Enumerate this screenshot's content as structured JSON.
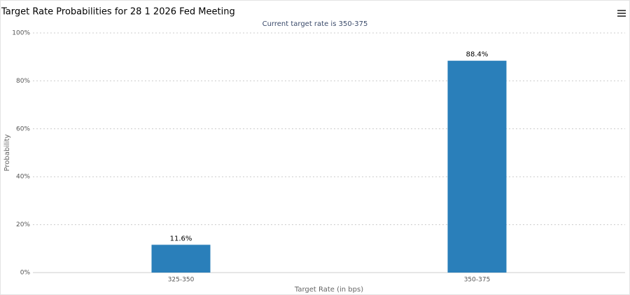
{
  "chart_data": {
    "type": "bar",
    "title": "Target Rate Probabilities for 28 1 2026 Fed Meeting",
    "subtitle": "Current target rate is 350-375",
    "y_label": "Probability",
    "x_label": "Target Rate (in bps)",
    "categories": [
      "325-350",
      "350-375"
    ],
    "values": [
      11.6,
      88.4
    ],
    "value_labels": [
      "11.6%",
      "88.4%"
    ],
    "color": "#2a7fba",
    "ylim": [
      0,
      100
    ],
    "yticks": [
      {
        "value": 0,
        "label": "0%"
      },
      {
        "value": 20,
        "label": "20%"
      },
      {
        "value": 40,
        "label": "40%"
      },
      {
        "value": 60,
        "label": "60%"
      },
      {
        "value": 80,
        "label": "80%"
      },
      {
        "value": 100,
        "label": "100%"
      }
    ],
    "grid": true
  }
}
